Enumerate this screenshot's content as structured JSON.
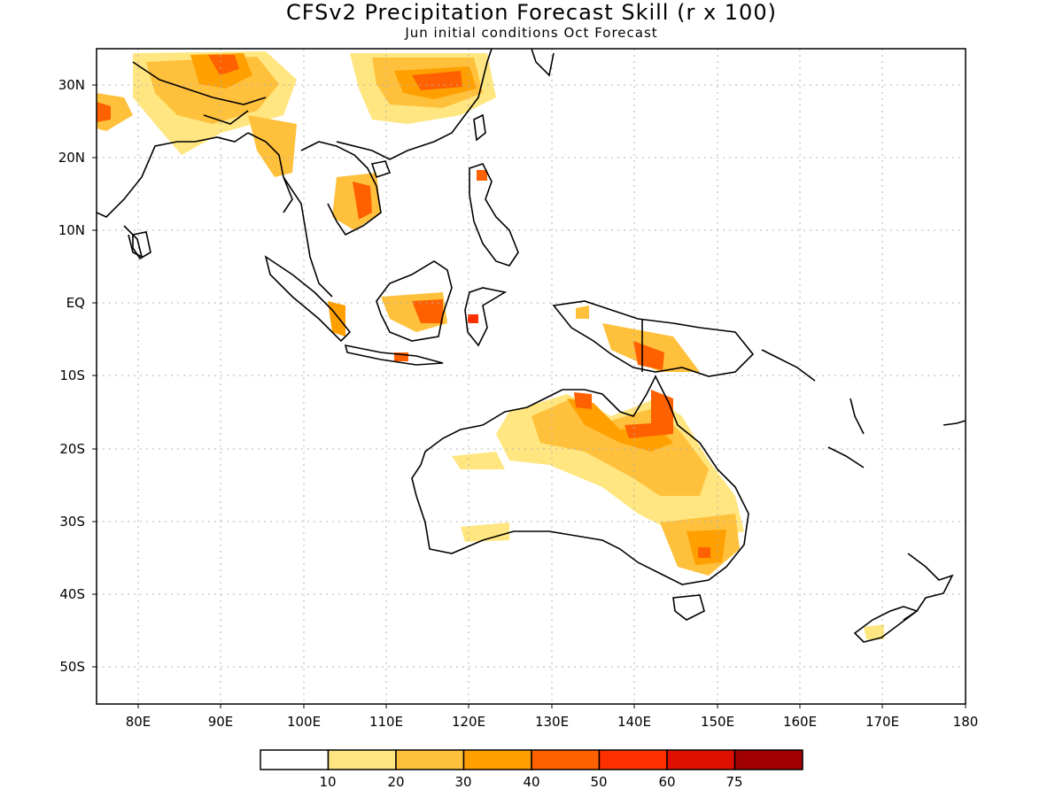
{
  "header": {
    "title": "CFSv2 Precipitation Forecast Skill (r x 100)",
    "subtitle": "Jun initial conditions  Oct Forecast"
  },
  "axes": {
    "lat_labels": [
      "30N",
      "20N",
      "10N",
      "EQ",
      "10S",
      "20S",
      "30S",
      "40S",
      "50S"
    ],
    "lon_labels": [
      "80E",
      "90E",
      "100E",
      "110E",
      "120E",
      "130E",
      "140E",
      "150E",
      "160E",
      "170E",
      "180"
    ],
    "lat_range": [
      -55,
      35
    ],
    "lon_range": [
      75,
      180
    ],
    "grid": "dotted"
  },
  "legend": {
    "labels": [
      "10",
      "20",
      "30",
      "40",
      "50",
      "60",
      "75"
    ],
    "colors": [
      "#ffffff",
      "#ffe680",
      "#ffc03c",
      "#ffa000",
      "#ff6000",
      "#ff3000",
      "#e01000",
      "#a00000"
    ]
  },
  "skill_regions": [
    {
      "region": "Tibet / Himalaya",
      "level": "40-50"
    },
    {
      "region": "Eastern China",
      "level": "40-50"
    },
    {
      "region": "Vietnam / Cambodia",
      "level": "40-50"
    },
    {
      "region": "Borneo",
      "level": "50-60"
    },
    {
      "region": "Sulawesi",
      "level": "50-60"
    },
    {
      "region": "New Guinea",
      "level": "50-60"
    },
    {
      "region": "Northern Australia",
      "level": "40-50"
    },
    {
      "region": "Southeast Australia",
      "level": "40-50"
    },
    {
      "region": "New Zealand South Island",
      "level": "10-20"
    }
  ]
}
